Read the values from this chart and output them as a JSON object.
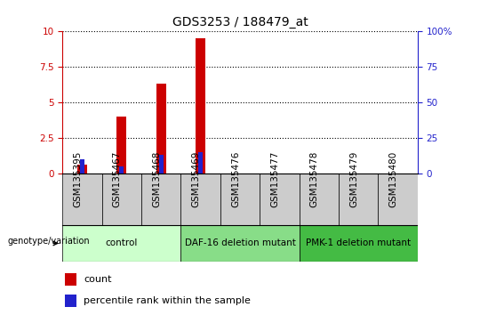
{
  "title": "GDS3253 / 188479_at",
  "samples": [
    "GSM135395",
    "GSM135467",
    "GSM135468",
    "GSM135469",
    "GSM135476",
    "GSM135477",
    "GSM135478",
    "GSM135479",
    "GSM135480"
  ],
  "count_values": [
    0.6,
    4.0,
    6.3,
    9.5,
    0.0,
    0.0,
    0.0,
    0.0,
    0.0
  ],
  "percentile_values": [
    1.0,
    0.5,
    1.3,
    1.5,
    0.0,
    0.0,
    0.0,
    0.0,
    0.0
  ],
  "ylim_left": [
    0,
    10
  ],
  "ylim_right": [
    0,
    100
  ],
  "yticks_left": [
    0,
    2.5,
    5.0,
    7.5,
    10
  ],
  "yticks_right": [
    0,
    25,
    50,
    75,
    100
  ],
  "bar_color_count": "#cc0000",
  "bar_color_pct": "#2222cc",
  "groups": [
    {
      "label": "control",
      "start": 0,
      "end": 3,
      "color": "#ccffcc"
    },
    {
      "label": "DAF-16 deletion mutant",
      "start": 3,
      "end": 6,
      "color": "#88dd88"
    },
    {
      "label": "PMK-1 deletion mutant",
      "start": 6,
      "end": 9,
      "color": "#44bb44"
    }
  ],
  "title_fontsize": 10,
  "tick_fontsize": 7.5,
  "label_fontsize": 7.5,
  "legend_fontsize": 8,
  "group_label_fontsize": 7.5,
  "genotype_label": "genotype/variation",
  "left_axis_color": "#cc0000",
  "right_axis_color": "#2222cc",
  "sample_box_color": "#cccccc",
  "background_color": "#ffffff"
}
